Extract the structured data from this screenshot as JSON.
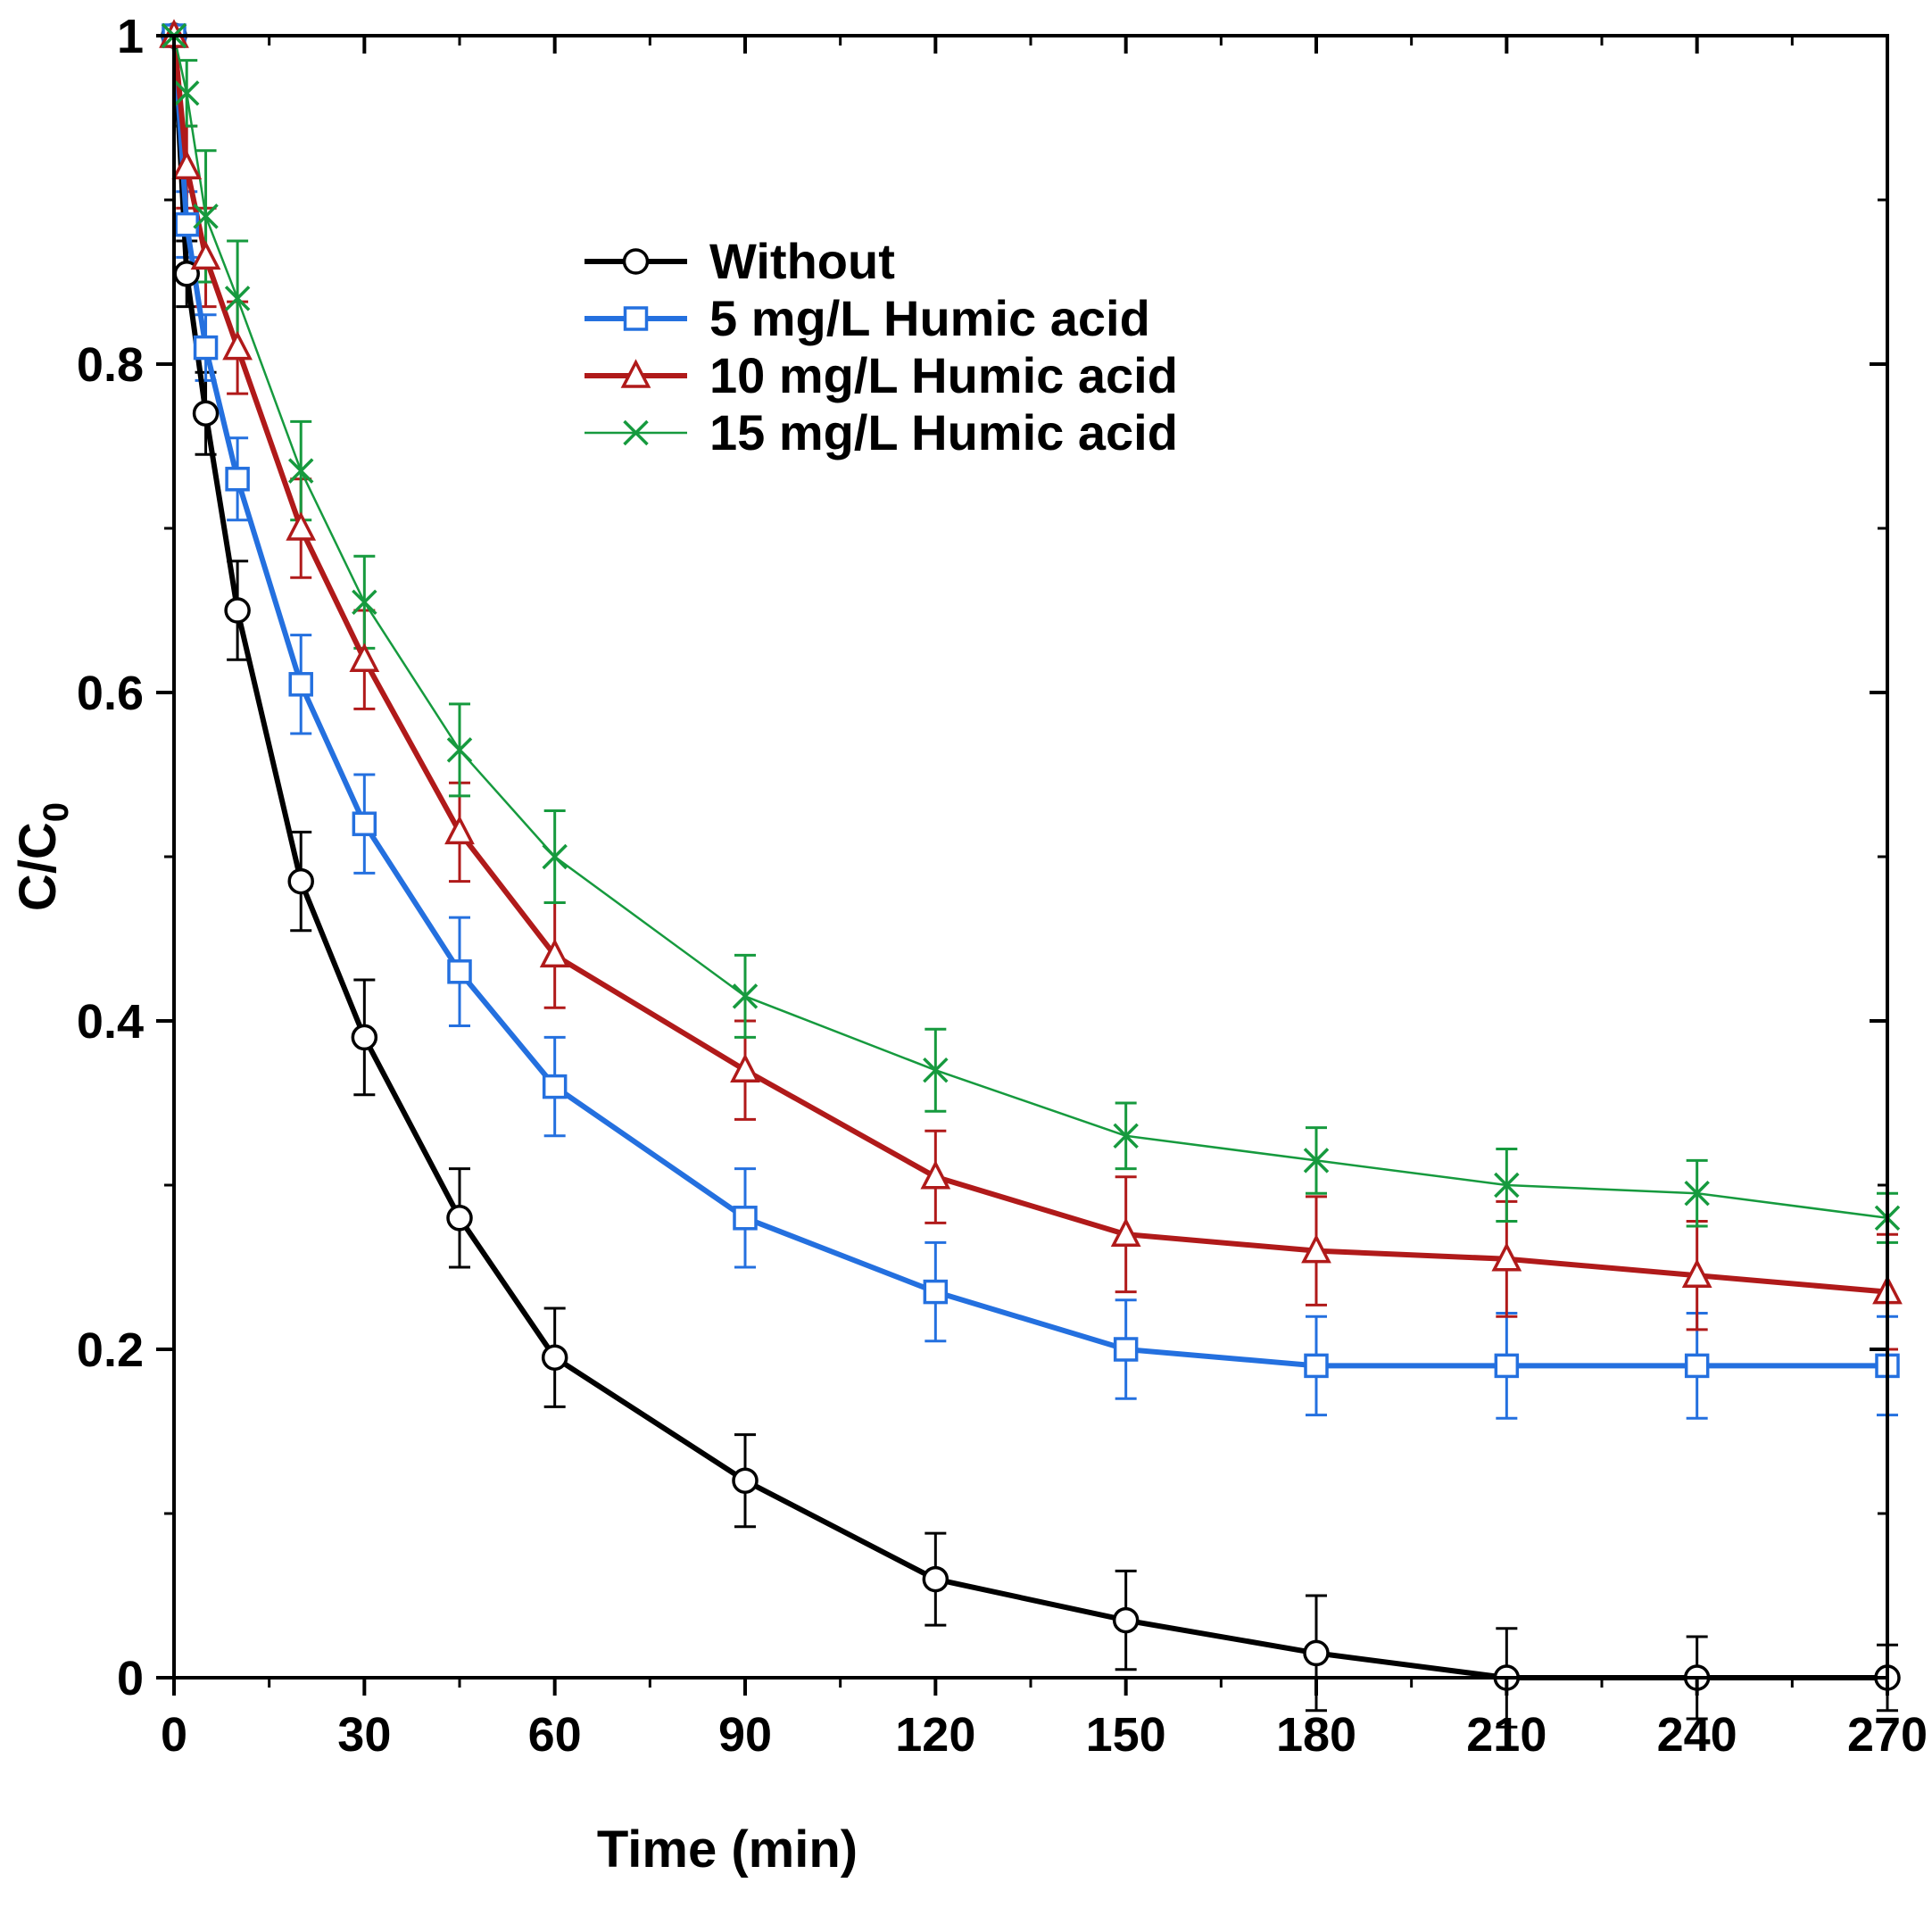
{
  "chart_data": {
    "type": "line",
    "title": "",
    "xlabel": "Time (min)",
    "ylabel": "C/C",
    "ylabel_subscript": "0",
    "xlim": [
      0,
      270
    ],
    "ylim": [
      0,
      1
    ],
    "x_major_ticks": [
      0,
      30,
      60,
      90,
      120,
      150,
      180,
      210,
      240,
      270
    ],
    "x_minor_step": 15,
    "y_major_ticks": [
      0,
      0.2,
      0.4,
      0.6,
      0.8,
      1
    ],
    "y_tick_labels": [
      "0",
      "0.2",
      "0.4",
      "0.6",
      "0.8",
      "1"
    ],
    "y_minor_step": 0.1,
    "grid": false,
    "legend_position": "inside-top-center",
    "x": [
      0,
      2,
      5,
      10,
      20,
      30,
      45,
      60,
      90,
      120,
      150,
      180,
      210,
      240,
      270
    ],
    "series": [
      {
        "name": "Without",
        "color": "#000000",
        "marker": "circle",
        "line_width": 6,
        "values": [
          1.0,
          0.855,
          0.77,
          0.65,
          0.485,
          0.39,
          0.28,
          0.195,
          0.12,
          0.06,
          0.035,
          0.015,
          0.0,
          0.0,
          0.0
        ],
        "errors": [
          0,
          0.02,
          0.025,
          0.03,
          0.03,
          0.035,
          0.03,
          0.03,
          0.028,
          0.028,
          0.03,
          0.035,
          0.03,
          0.025,
          0.02
        ]
      },
      {
        "name": "5 mg/L Humic acid",
        "color": "#2470DF",
        "marker": "square",
        "line_width": 6,
        "values": [
          1.0,
          0.885,
          0.81,
          0.73,
          0.605,
          0.52,
          0.43,
          0.36,
          0.28,
          0.235,
          0.2,
          0.19,
          0.19,
          0.19,
          0.19
        ],
        "errors": [
          0,
          0.02,
          0.02,
          0.025,
          0.03,
          0.03,
          0.033,
          0.03,
          0.03,
          0.03,
          0.03,
          0.03,
          0.032,
          0.032,
          0.03
        ]
      },
      {
        "name": "10 mg/L Humic acid",
        "color": "#B01A1A",
        "marker": "triangle",
        "line_width": 6,
        "values": [
          1.0,
          0.92,
          0.865,
          0.81,
          0.7,
          0.62,
          0.515,
          0.44,
          0.37,
          0.305,
          0.27,
          0.26,
          0.255,
          0.245,
          0.235
        ],
        "errors": [
          0,
          0.025,
          0.03,
          0.028,
          0.03,
          0.03,
          0.03,
          0.032,
          0.03,
          0.028,
          0.035,
          0.033,
          0.035,
          0.033,
          0.035
        ]
      },
      {
        "name": "15 mg/L Humic acid",
        "color": "#169A3E",
        "marker": "x",
        "line_width": 2.5,
        "values": [
          1.0,
          0.965,
          0.89,
          0.84,
          0.735,
          0.655,
          0.565,
          0.5,
          0.415,
          0.37,
          0.33,
          0.315,
          0.3,
          0.295,
          0.28
        ],
        "errors": [
          0,
          0.02,
          0.04,
          0.035,
          0.03,
          0.028,
          0.028,
          0.028,
          0.025,
          0.025,
          0.02,
          0.02,
          0.022,
          0.02,
          0.015
        ]
      }
    ]
  }
}
